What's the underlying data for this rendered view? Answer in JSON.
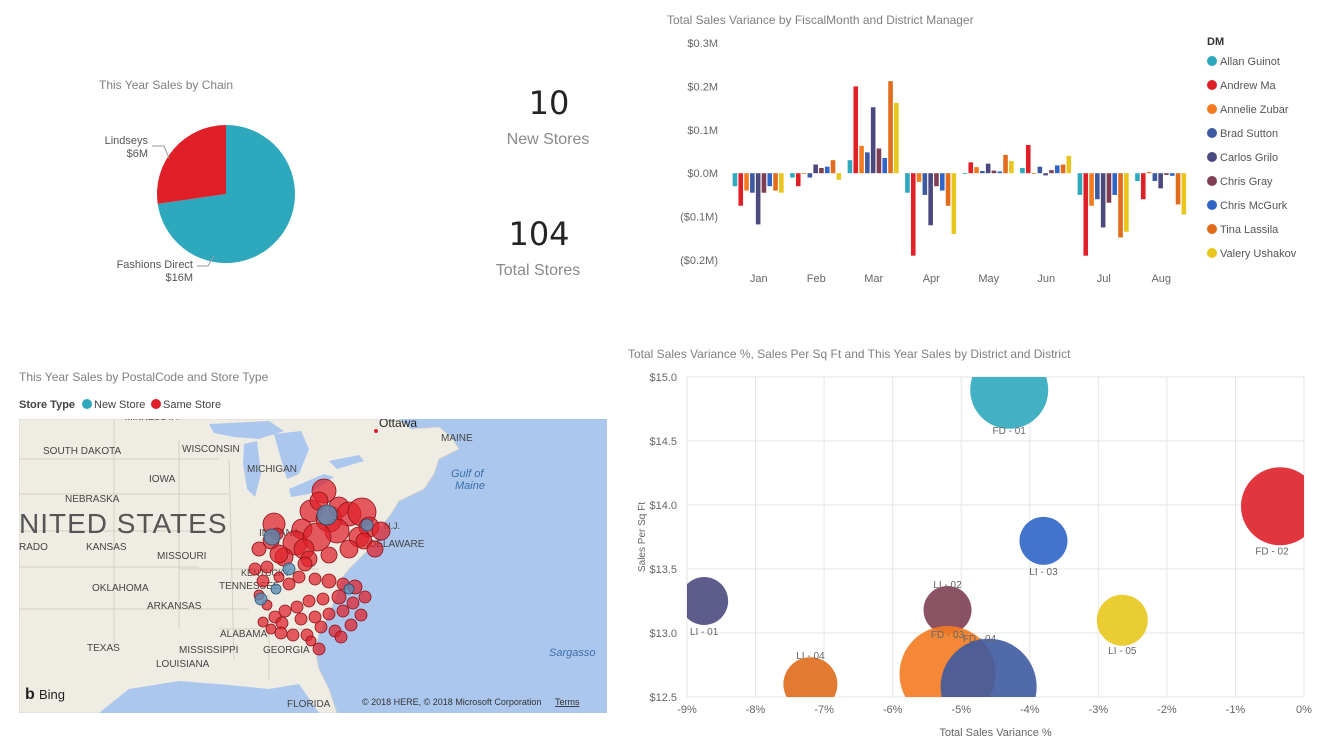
{
  "pie": {
    "title": "This Year Sales by Chain",
    "colors": {
      "Fashions Direct": "#2ea8bd",
      "Lindseys": "#df2029"
    },
    "chart_data": {
      "type": "pie",
      "labels": [
        "Fashions Direct",
        "Lindseys"
      ],
      "values": [
        16,
        6
      ],
      "value_labels": [
        "$16M",
        "$6M"
      ],
      "title": "This Year Sales by Chain"
    }
  },
  "kpis": [
    {
      "value": "10",
      "label": "New Stores"
    },
    {
      "value": "104",
      "label": "Total Stores"
    }
  ],
  "bar": {
    "title": "Total Sales Variance by FiscalMonth and District Manager",
    "legend_title": "DM",
    "legend_position": "right",
    "chart_data": {
      "type": "bar",
      "title": "Total Sales Variance by FiscalMonth and District Manager",
      "categories": [
        "Jan",
        "Feb",
        "Mar",
        "Apr",
        "May",
        "Jun",
        "Jul",
        "Aug"
      ],
      "ylim": [
        -0.2,
        0.3
      ],
      "yticks": [
        0.3,
        0.2,
        0.1,
        0.0,
        -0.1,
        -0.2
      ],
      "ytick_labels": [
        "$0.3M",
        "$0.2M",
        "$0.1M",
        "$0.0M",
        "($0.1M)",
        "($0.2M)"
      ],
      "series": [
        {
          "name": "Allan Guinot",
          "color": "#2ea8bd",
          "values": [
            -0.03,
            -0.01,
            0.03,
            -0.045,
            0.0,
            0.012,
            -0.05,
            -0.018
          ]
        },
        {
          "name": "Andrew Ma",
          "color": "#df2029",
          "values": [
            -0.075,
            -0.03,
            0.2,
            -0.19,
            0.025,
            0.065,
            -0.19,
            -0.06
          ]
        },
        {
          "name": "Annelie Zubar",
          "color": "#f47b20",
          "values": [
            -0.04,
            0.0,
            0.063,
            -0.02,
            0.014,
            0.0,
            -0.075,
            0.003
          ]
        },
        {
          "name": "Brad Sutton",
          "color": "#3e5aa1",
          "values": [
            -0.045,
            -0.01,
            0.048,
            -0.05,
            0.005,
            0.015,
            -0.06,
            -0.018
          ]
        },
        {
          "name": "Carlos Grilo",
          "color": "#4b4a7e",
          "values": [
            -0.118,
            0.02,
            0.152,
            -0.12,
            0.022,
            -0.005,
            -0.125,
            -0.035
          ]
        },
        {
          "name": "Chris Gray",
          "color": "#7e3f53",
          "values": [
            -0.045,
            0.012,
            0.057,
            -0.03,
            0.006,
            0.007,
            -0.068,
            -0.004
          ]
        },
        {
          "name": "Chris McGurk",
          "color": "#2f65c6",
          "values": [
            -0.03,
            0.015,
            0.035,
            -0.04,
            0.004,
            0.018,
            -0.05,
            -0.006
          ]
        },
        {
          "name": "Tina Lassila",
          "color": "#e06c1c",
          "values": [
            -0.04,
            0.03,
            0.212,
            -0.075,
            0.042,
            0.02,
            -0.148,
            -0.072
          ]
        },
        {
          "name": "Valery Ushakov",
          "color": "#e8c61d",
          "values": [
            -0.045,
            -0.015,
            0.162,
            -0.14,
            0.028,
            0.04,
            -0.135,
            -0.095
          ]
        }
      ]
    }
  },
  "map": {
    "title": "This Year Sales by PostalCode and Store Type",
    "legend_title": "Store Type",
    "legend_items": [
      {
        "label": "New Store",
        "color": "#2ea8bd"
      },
      {
        "label": "Same Store",
        "color": "#df2029"
      }
    ],
    "place_labels": [
      "Ottawa",
      "MAINE",
      "WISCONSIN",
      "SOUTH DAKOTA",
      "MICHIGAN",
      "IOWA",
      "NEBRASKA",
      "NITED STATES",
      "RADO",
      "KANSAS",
      "MISSOURI",
      "INDIANA",
      "OKLAHOMA",
      "ARKANSAS",
      "TENNESSEE",
      "KENTUCKY",
      "TEXAS",
      "MISSISSIPPI",
      "LOUISIANA",
      "ALABAMA",
      "GEORGIA",
      "FLORIDA",
      "Gulf of",
      "Maine",
      "Sargasso",
      "N.J.",
      "DELAWARE",
      "MINNESOTA"
    ],
    "bing_label": "Bing",
    "copyright": "© 2018 HERE, © 2018 Microsoft Corporation",
    "terms": "Terms"
  },
  "scatter": {
    "title": "Total Sales Variance %, Sales Per Sq Ft and This Year Sales by District and District",
    "chart_data": {
      "type": "scatter",
      "title": "Total Sales Variance %, Sales Per Sq Ft and This Year Sales by District and District",
      "xlabel": "Total Sales Variance %",
      "ylabel": "Sales Per Sq Ft",
      "xlim": [
        -9,
        0
      ],
      "ylim": [
        12.5,
        15.0
      ],
      "xticks": [
        -9,
        -8,
        -7,
        -6,
        -5,
        -4,
        -3,
        -2,
        -1,
        0
      ],
      "xtick_labels": [
        "-9%",
        "-8%",
        "-7%",
        "-6%",
        "-5%",
        "-4%",
        "-3%",
        "-2%",
        "-1%",
        "0%"
      ],
      "yticks": [
        15.0,
        14.5,
        14.0,
        13.5,
        13.0,
        12.5
      ],
      "ytick_labels": [
        "$15.0",
        "$14.5",
        "$14.0",
        "$13.5",
        "$13.0",
        "$12.5"
      ],
      "grid": true,
      "points": [
        {
          "label": "FD - 01",
          "x": -4.3,
          "y": 14.9,
          "size": 1.0,
          "color": "#2ea8bd"
        },
        {
          "label": "FD - 02",
          "x": -0.35,
          "y": 13.99,
          "size": 1.0,
          "color": "#df2029"
        },
        {
          "label": "LI - 03",
          "x": -3.8,
          "y": 13.72,
          "size": 0.5,
          "color": "#2f65c6"
        },
        {
          "label": "LI - 01",
          "x": -8.75,
          "y": 13.25,
          "size": 0.5,
          "color": "#4b4a7e"
        },
        {
          "label": "FD - 03",
          "x": -5.2,
          "y": 13.18,
          "size": 0.5,
          "color": "#7e3f53"
        },
        {
          "label": "LI - 02",
          "x": -5.2,
          "y": 13.18,
          "size": 0.0,
          "color": "#7e3f53"
        },
        {
          "label": "LI - 05",
          "x": -2.65,
          "y": 13.1,
          "size": 0.55,
          "color": "#e8c61d"
        },
        {
          "label": "LI - 04",
          "x": -7.2,
          "y": 12.6,
          "size": 0.6,
          "color": "#e06c1c"
        },
        {
          "label": "FD - 04",
          "x": -5.2,
          "y": 12.68,
          "size": 1.3,
          "color": "#f47b20"
        },
        {
          "label": "",
          "x": -4.6,
          "y": 12.58,
          "size": 1.3,
          "color": "#3e5aa1"
        }
      ]
    }
  }
}
